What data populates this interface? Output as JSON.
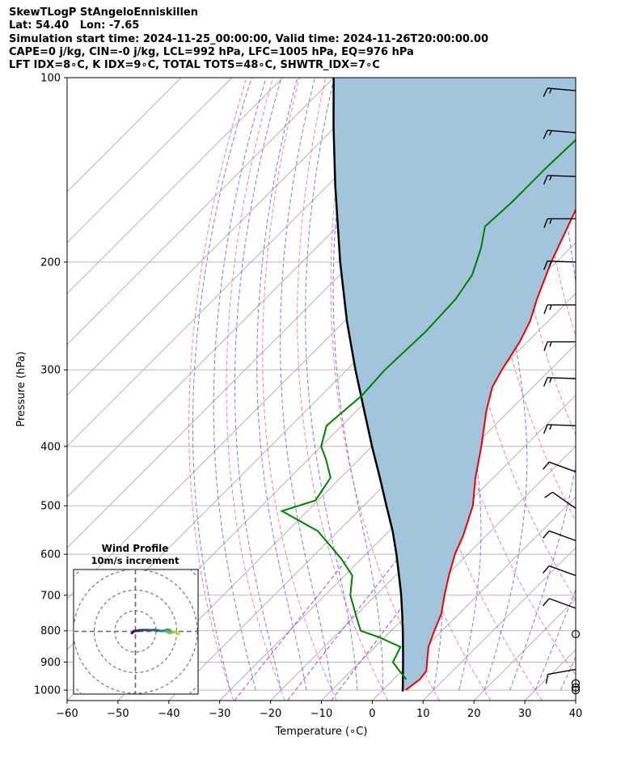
{
  "header": {
    "lines": [
      "SkewTLogP StAngeloEnniskillen",
      "Lat: 54.40   Lon: -7.65",
      "Simulation start time: 2024-11-25_00:00:00, Valid time: 2024-11-26T20:00:00.00",
      "CAPE=0 j/kg, CIN=-0 j/kg, LCL=992 hPa, LFC=1005 hPa, EQ=976 hPa",
      "LFT IDX=8∘C, K IDX=9∘C, TOTAL TOTS=48∘C, SHWTR_IDX=7∘C"
    ]
  },
  "chart_data": {
    "type": "skewt-logp",
    "xlabel": "Temperature (∘C)",
    "ylabel": "Pressure (hPa)",
    "xlim": [
      -60,
      40
    ],
    "ylim": [
      1040,
      100
    ],
    "pressure_ticks": [
      100,
      200,
      300,
      400,
      500,
      600,
      700,
      800,
      900,
      1000
    ],
    "temperature_ticks": [
      -60,
      -50,
      -40,
      -30,
      -20,
      -10,
      0,
      10,
      20,
      30,
      40
    ],
    "temperature_profile": [
      {
        "p": 1000,
        "t": 4.5
      },
      {
        "p": 960,
        "t": 5.2
      },
      {
        "p": 930,
        "t": 4.8
      },
      {
        "p": 900,
        "t": 3.2
      },
      {
        "p": 850,
        "t": 0.5
      },
      {
        "p": 800,
        "t": -1.5
      },
      {
        "p": 750,
        "t": -3.5
      },
      {
        "p": 700,
        "t": -6.5
      },
      {
        "p": 650,
        "t": -9.5
      },
      {
        "p": 600,
        "t": -12.5
      },
      {
        "p": 560,
        "t": -14.5
      },
      {
        "p": 500,
        "t": -18.5
      },
      {
        "p": 450,
        "t": -23.5
      },
      {
        "p": 400,
        "t": -28.5
      },
      {
        "p": 350,
        "t": -34.5
      },
      {
        "p": 320,
        "t": -38.0
      },
      {
        "p": 300,
        "t": -39.5
      },
      {
        "p": 270,
        "t": -41.5
      },
      {
        "p": 250,
        "t": -43.5
      },
      {
        "p": 230,
        "t": -46.5
      },
      {
        "p": 200,
        "t": -51.0
      },
      {
        "p": 170,
        "t": -55.5
      },
      {
        "p": 150,
        "t": -59.0
      },
      {
        "p": 130,
        "t": -63.0
      },
      {
        "p": 115,
        "t": -66.5
      },
      {
        "p": 100,
        "t": -70.5
      }
    ],
    "dewpoint_profile": [
      {
        "p": 960,
        "t": 2.5
      },
      {
        "p": 930,
        "t": -0.5
      },
      {
        "p": 900,
        "t": -3.5
      },
      {
        "p": 850,
        "t": -5.0
      },
      {
        "p": 820,
        "t": -11.0
      },
      {
        "p": 800,
        "t": -16.0
      },
      {
        "p": 760,
        "t": -19.5
      },
      {
        "p": 700,
        "t": -25.0
      },
      {
        "p": 650,
        "t": -28.5
      },
      {
        "p": 610,
        "t": -34.0
      },
      {
        "p": 550,
        "t": -44.0
      },
      {
        "p": 510,
        "t": -55.0
      },
      {
        "p": 490,
        "t": -50.5
      },
      {
        "p": 450,
        "t": -52.0
      },
      {
        "p": 420,
        "t": -56.5
      },
      {
        "p": 400,
        "t": -60.0
      },
      {
        "p": 370,
        "t": -63.0
      },
      {
        "p": 330,
        "t": -62.0
      },
      {
        "p": 300,
        "t": -62.5
      },
      {
        "p": 260,
        "t": -62.0
      },
      {
        "p": 230,
        "t": -62.5
      },
      {
        "p": 210,
        "t": -64.0
      },
      {
        "p": 190,
        "t": -67.5
      },
      {
        "p": 175,
        "t": -71.0
      },
      {
        "p": 160,
        "t": -70.5
      },
      {
        "p": 140,
        "t": -70.5
      },
      {
        "p": 120,
        "t": -70.0
      },
      {
        "p": 100,
        "t": -71.0
      }
    ],
    "parcel_profile": [
      {
        "p": 1005,
        "t": 4.2
      },
      {
        "p": 950,
        "t": 1.3
      },
      {
        "p": 900,
        "t": -1.5
      },
      {
        "p": 850,
        "t": -4.5
      },
      {
        "p": 800,
        "t": -7.7
      },
      {
        "p": 750,
        "t": -11.2
      },
      {
        "p": 700,
        "t": -15.0
      },
      {
        "p": 650,
        "t": -19.3
      },
      {
        "p": 600,
        "t": -24.0
      },
      {
        "p": 550,
        "t": -29.3
      },
      {
        "p": 500,
        "t": -35.5
      },
      {
        "p": 450,
        "t": -42.3
      },
      {
        "p": 400,
        "t": -50.0
      },
      {
        "p": 350,
        "t": -58.5
      },
      {
        "p": 300,
        "t": -68.3
      },
      {
        "p": 250,
        "t": -79.5
      },
      {
        "p": 200,
        "t": -92.5
      },
      {
        "p": 150,
        "t": -108.5
      },
      {
        "p": 120,
        "t": -120.5
      },
      {
        "p": 100,
        "t": -130.0
      }
    ],
    "wind_barbs": [
      {
        "p": 1000,
        "speed_kt": 0
      },
      {
        "p": 990,
        "speed_kt": 0
      },
      {
        "p": 975,
        "speed_kt": 0
      },
      {
        "p": 925,
        "speed_kt": 10,
        "dir_deg": 280
      },
      {
        "p": 810,
        "speed_kt": 0
      },
      {
        "p": 735,
        "speed_kt": 10,
        "dir_deg": 250
      },
      {
        "p": 650,
        "speed_kt": 10,
        "dir_deg": 250
      },
      {
        "p": 570,
        "speed_kt": 10,
        "dir_deg": 250
      },
      {
        "p": 505,
        "speed_kt": 10,
        "dir_deg": 235
      },
      {
        "p": 440,
        "speed_kt": 10,
        "dir_deg": 250
      },
      {
        "p": 370,
        "speed_kt": 15,
        "dir_deg": 268
      },
      {
        "p": 310,
        "speed_kt": 15,
        "dir_deg": 268
      },
      {
        "p": 270,
        "speed_kt": 15,
        "dir_deg": 270
      },
      {
        "p": 235,
        "speed_kt": 15,
        "dir_deg": 270
      },
      {
        "p": 200,
        "speed_kt": 15,
        "dir_deg": 268
      },
      {
        "p": 170,
        "speed_kt": 15,
        "dir_deg": 270
      },
      {
        "p": 145,
        "speed_kt": 15,
        "dir_deg": 268
      },
      {
        "p": 123,
        "speed_kt": 15,
        "dir_deg": 265
      },
      {
        "p": 105,
        "speed_kt": 15,
        "dir_deg": 265
      }
    ],
    "hodograph": {
      "title": "Wind Profile",
      "subtitle": "10m/s increment",
      "ring_step_ms": 10,
      "rings": 4,
      "points": [
        {
          "u": -1.2,
          "v": -0.6
        },
        {
          "u": -0.5,
          "v": 0.1
        },
        {
          "u": 0.5,
          "v": 0.2
        },
        {
          "u": 1.5,
          "v": 0.4
        },
        {
          "u": 3.0,
          "v": 0.5
        },
        {
          "u": 5.0,
          "v": 0.4
        },
        {
          "u": 6.5,
          "v": 0.5
        },
        {
          "u": 8.0,
          "v": 0.3
        },
        {
          "u": 9.0,
          "v": 0.1
        },
        {
          "u": 10.0,
          "v": 0.3
        },
        {
          "u": 11.0,
          "v": 0.6
        },
        {
          "u": 12.0,
          "v": 0.4
        },
        {
          "u": 11.6,
          "v": -0.3
        },
        {
          "u": 10.7,
          "v": -0.1
        },
        {
          "u": 11.8,
          "v": -0.6
        },
        {
          "u": 13.0,
          "v": -0.2
        },
        {
          "u": 13.8,
          "v": -0.2
        },
        {
          "u": 14.5,
          "v": -0.4
        },
        {
          "u": 15.0,
          "v": -0.9
        }
      ]
    },
    "colors": {
      "temperature": "#ee0000",
      "dewpoint": "#008000",
      "parcel": "#000000",
      "fill": "#a2c4dd",
      "dry_adiabat": "#f07070",
      "moist_adiabat": "#6868ee",
      "mixing_ratio": "#9c4cc8",
      "isotherm": "#aaaaaa",
      "isobar": "#b0b0b0",
      "hodograph_start": "#440154",
      "hodograph_mid": "#21918c",
      "hodograph_end": "#bddf26"
    }
  }
}
